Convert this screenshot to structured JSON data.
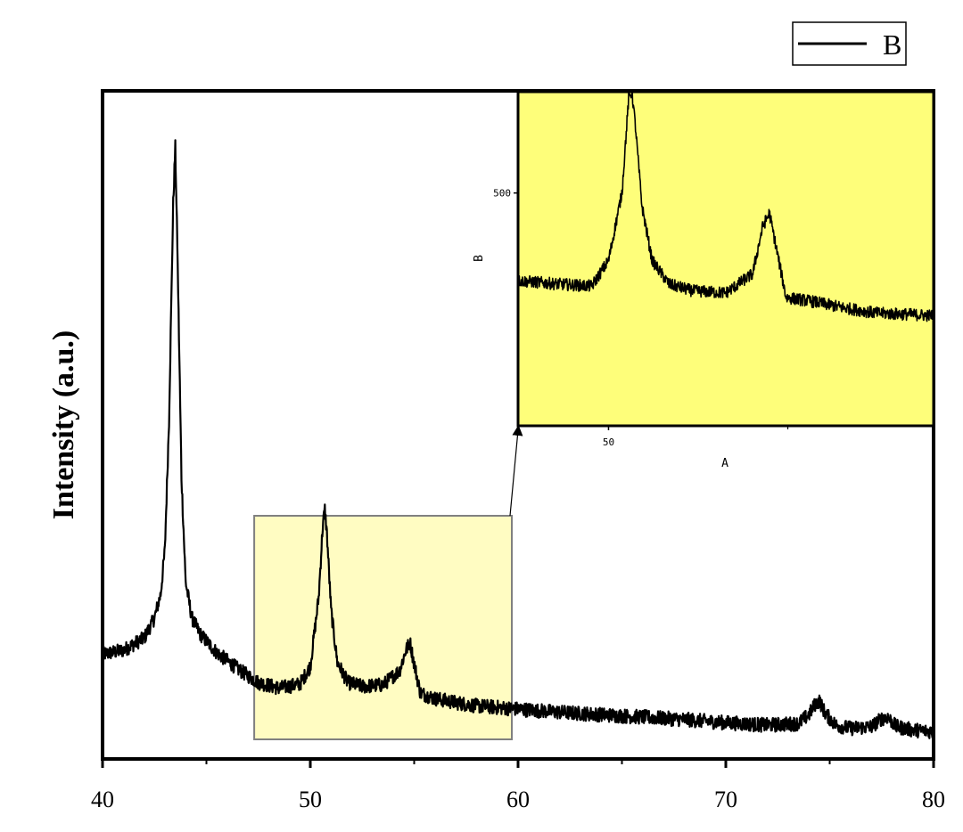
{
  "legend": {
    "entries": [
      {
        "name": "B",
        "color": "#000000"
      }
    ]
  },
  "chart_data": [
    {
      "type": "line",
      "title": "",
      "xlabel": "",
      "ylabel": "Intensity (a.u.)",
      "xlim": [
        40,
        80
      ],
      "xticks": [
        40,
        50,
        60,
        70,
        80
      ],
      "yticks": [],
      "grid": false,
      "legend_position": "top-right",
      "line_color": "#000000",
      "highlight_region": {
        "x_from": 47.3,
        "x_to": 59.7,
        "color": "#fffcc2"
      },
      "series": [
        {
          "name": "B",
          "x": [
            40.0,
            41.0,
            42.0,
            42.5,
            42.8,
            43.0,
            43.2,
            43.4,
            43.5,
            43.6,
            43.8,
            44.0,
            44.3,
            44.7,
            45.5,
            46.5,
            47.5,
            48.5,
            49.5,
            50.0,
            50.4,
            50.6,
            50.7,
            50.8,
            51.0,
            51.3,
            51.8,
            52.5,
            53.5,
            54.3,
            54.6,
            54.8,
            55.0,
            55.3,
            56.0,
            57.0,
            58.0,
            59.0,
            60.0,
            62.0,
            64.0,
            66.0,
            68.0,
            70.0,
            72.0,
            73.5,
            74.0,
            74.3,
            74.5,
            74.8,
            75.3,
            76.0,
            77.0,
            77.5,
            77.8,
            78.2,
            79.0,
            80.0
          ],
          "y": [
            130,
            135,
            150,
            175,
            205,
            260,
            420,
            690,
            760,
            640,
            350,
            220,
            175,
            155,
            132,
            112,
            95,
            88,
            93,
            115,
            200,
            290,
            310,
            280,
            185,
            120,
            95,
            90,
            92,
            110,
            135,
            145,
            118,
            82,
            75,
            70,
            66,
            64,
            62,
            58,
            55,
            52,
            49,
            45,
            42,
            44,
            55,
            68,
            72,
            56,
            42,
            38,
            40,
            50,
            52,
            40,
            36,
            34
          ],
          "noise": 9
        }
      ]
    },
    {
      "type": "line",
      "title": "",
      "xlabel": "A",
      "ylabel": "B",
      "xlim": [
        47.3,
        59.7
      ],
      "ylim": [
        155,
        650
      ],
      "xticks": [
        50
      ],
      "yticks": [
        500
      ],
      "background": "#fefe7a",
      "series": [
        {
          "name": "B",
          "x": [
            47.3,
            48.5,
            49.5,
            50.0,
            50.4,
            50.6,
            50.7,
            50.8,
            51.0,
            51.3,
            51.8,
            52.5,
            53.5,
            54.3,
            54.6,
            54.8,
            55.0,
            55.3,
            56.0,
            57.0,
            58.0,
            59.0,
            59.7
          ],
          "y": [
            370,
            365,
            362,
            400,
            500,
            640,
            650,
            600,
            480,
            400,
            365,
            355,
            352,
            380,
            450,
            470,
            420,
            345,
            340,
            330,
            322,
            320,
            318
          ],
          "noise": 9
        }
      ]
    }
  ]
}
